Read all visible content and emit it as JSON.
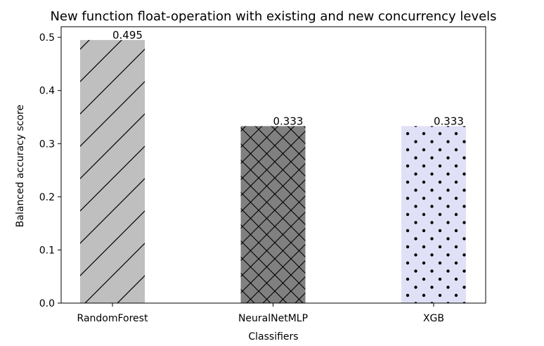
{
  "chart_data": {
    "type": "bar",
    "title": "New function float-operation with existing and new concurrency levels",
    "xlabel": "Classifiers",
    "ylabel": "Balanced accuracy score",
    "categories": [
      "RandomForest",
      "NeuralNetMLP",
      "XGB"
    ],
    "values": [
      0.495,
      0.333,
      0.333
    ],
    "value_labels": [
      "0.495",
      "0.333",
      "0.333"
    ],
    "ylim": [
      0,
      0.52
    ],
    "yticks": [
      0.0,
      0.1,
      0.2,
      0.3,
      0.4,
      0.5
    ],
    "ytick_labels": [
      "0.0",
      "0.1",
      "0.2",
      "0.3",
      "0.4",
      "0.5"
    ],
    "grid": false,
    "bar_colors": [
      "#bfbfbf",
      "#808080",
      "#e0e0f6"
    ],
    "bar_hatches": [
      "diagonal",
      "crosshatch",
      "dots"
    ]
  }
}
